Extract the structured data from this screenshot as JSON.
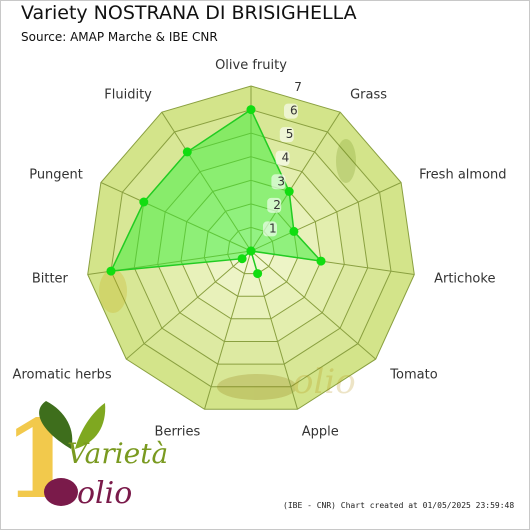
{
  "title": "Variety NOSTRANA DI BRISIGHELLA",
  "subtitle": "Source: AMAP Marche & IBE CNR",
  "credit": "(IBE - CNR) Chart created at 01/05/2025 23:59:48",
  "logo": {
    "word_top": "Varietà",
    "word_bottom": "olio",
    "numeral": "1"
  },
  "colors": {
    "ring_light": "#f2f7d2",
    "ring_dark": "#d3e48a",
    "grid": "#8aa040",
    "series_fill": "#33ee33",
    "series_line": "#22cc22",
    "marker": "#11dd11"
  },
  "chart_data": {
    "type": "radar",
    "title": "Variety NOSTRANA DI BRISIGHELLA",
    "subtitle": "Source: AMAP Marche & IBE CNR",
    "axes": [
      "Olive fruity",
      "Grass",
      "Fresh almond",
      "Artichoke",
      "Tomato",
      "Apple",
      "Berries",
      "Aromatic herbs",
      "Bitter",
      "Pungent",
      "Fluidity"
    ],
    "rmax": 7,
    "ticks": [
      "1",
      "2",
      "3",
      "4",
      "5",
      "6",
      "7"
    ],
    "grid": true,
    "legend": "none",
    "series": [
      {
        "values": [
          6,
          3,
          2,
          3,
          0,
          1,
          0,
          0.5,
          6,
          5,
          5
        ]
      }
    ]
  }
}
